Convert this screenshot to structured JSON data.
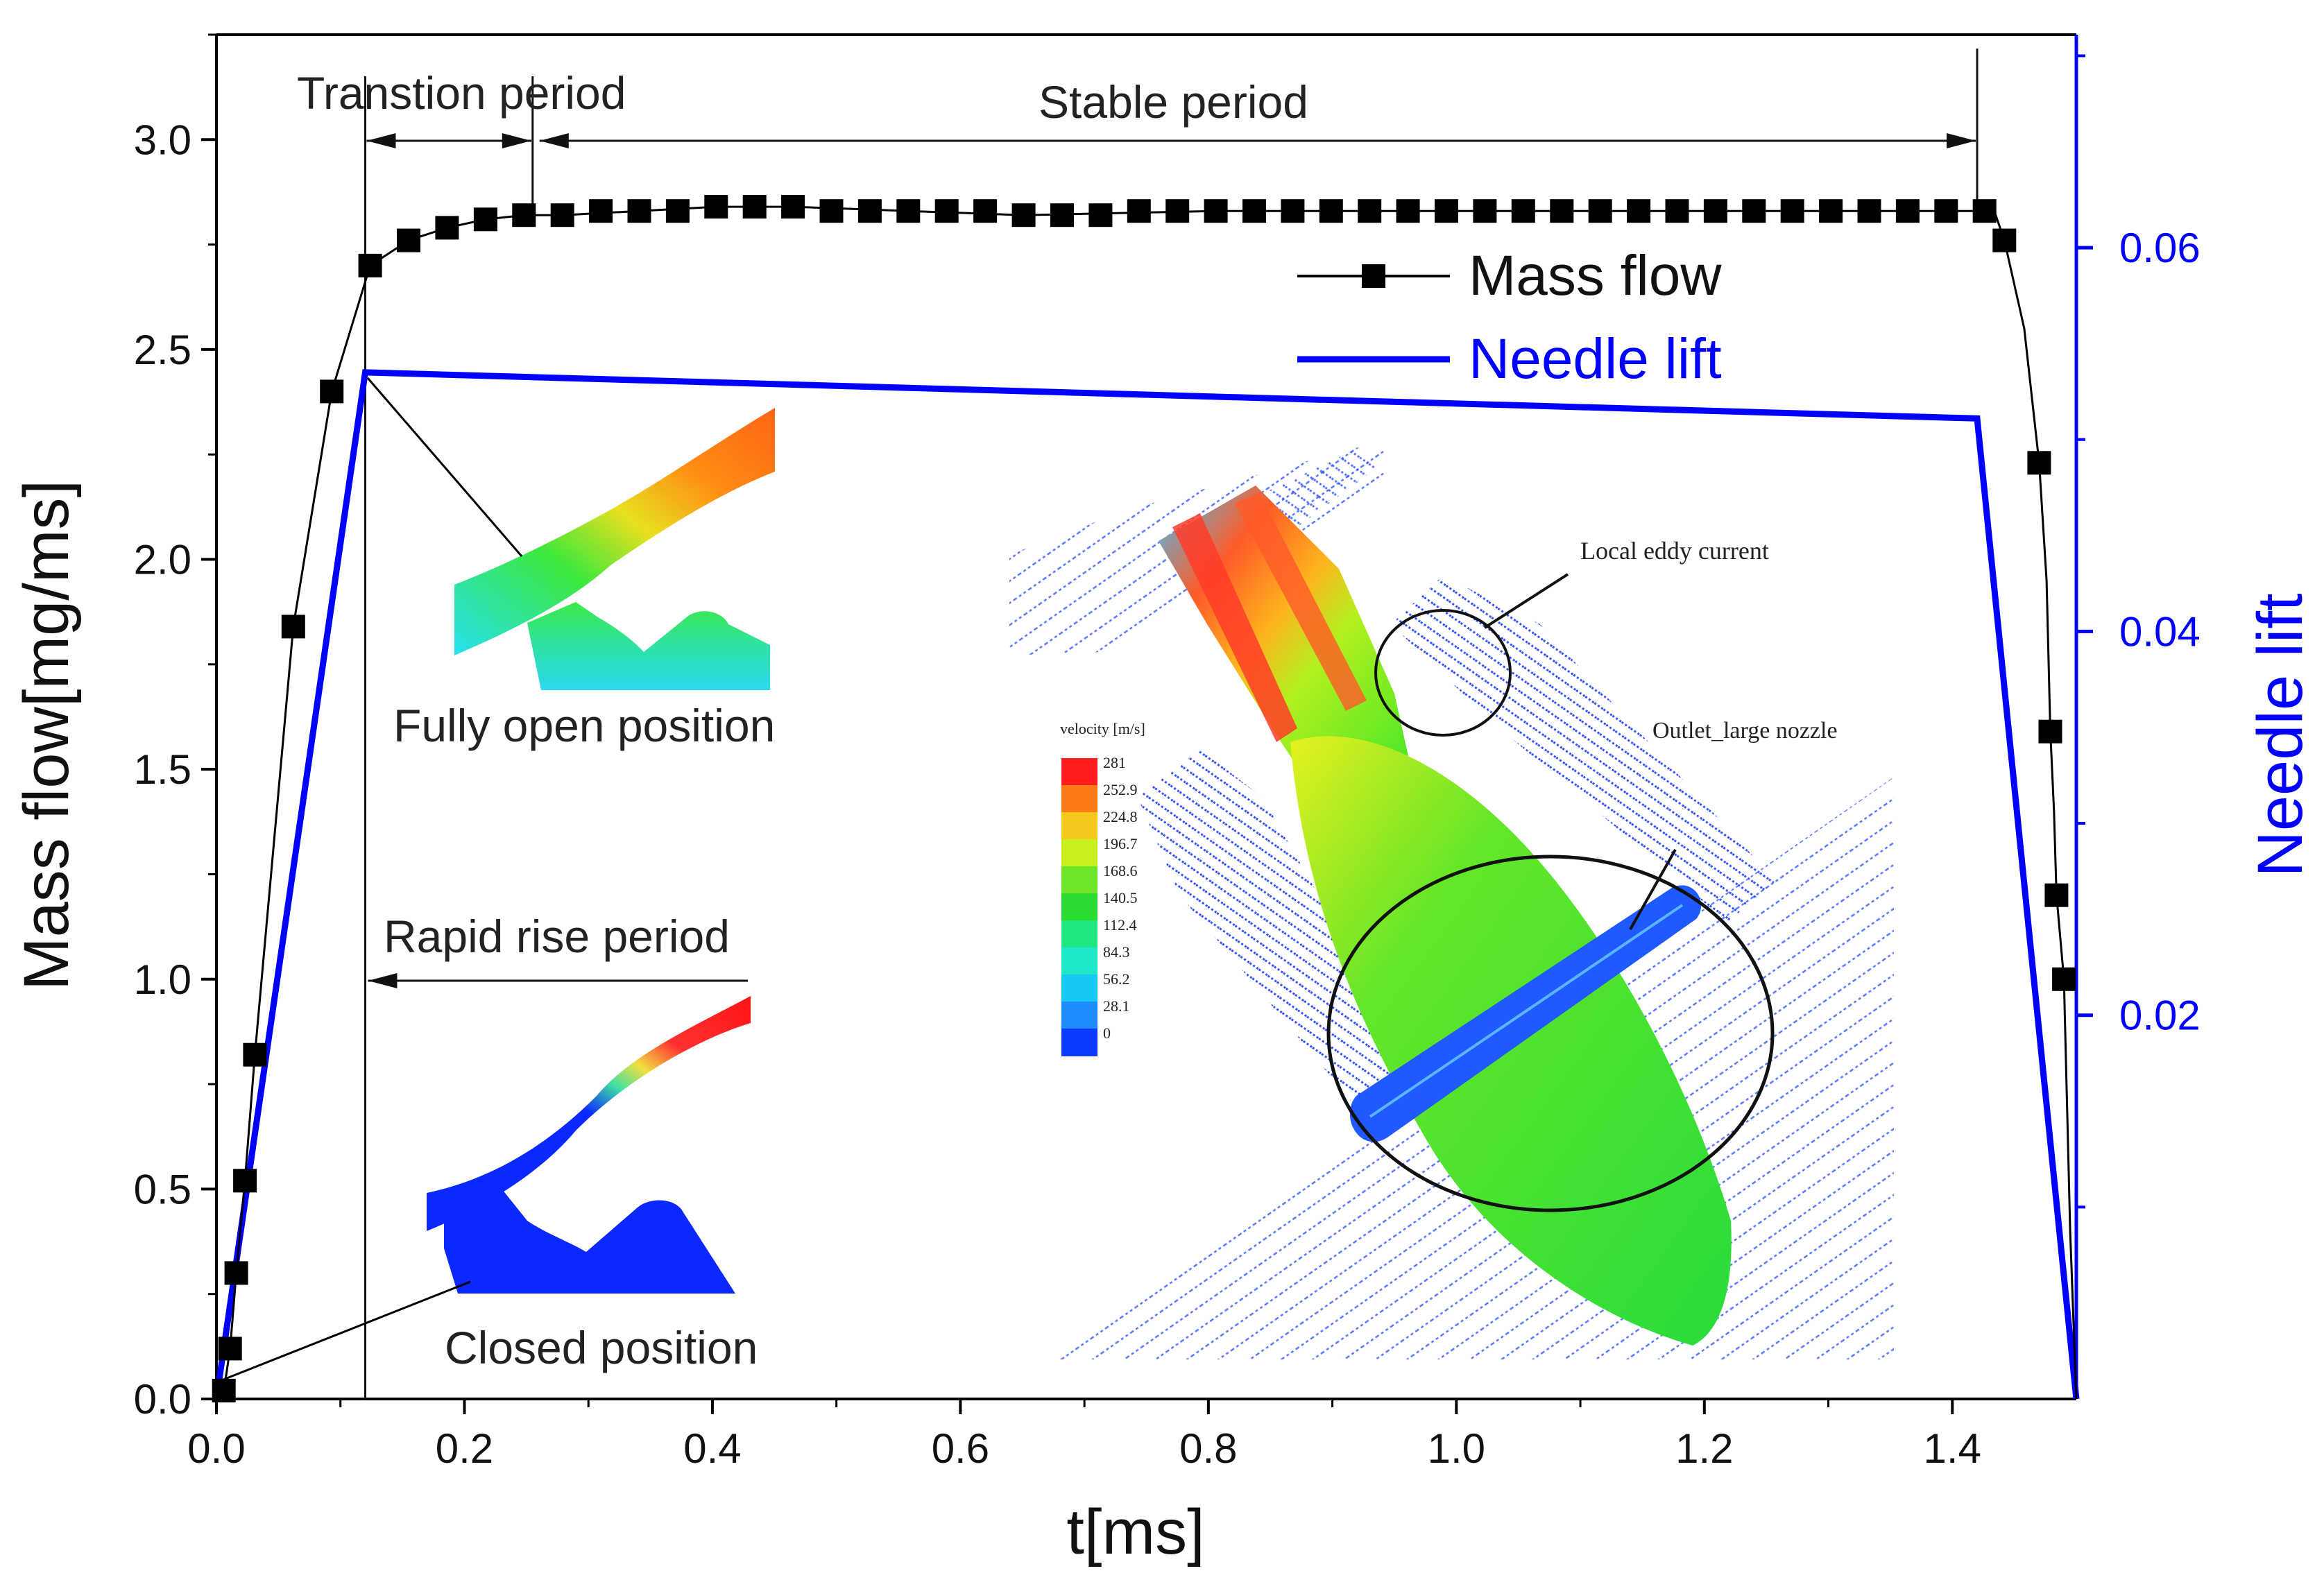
{
  "chart_data": {
    "type": "line",
    "xlabel": "t[ms]",
    "ylabel": "Mass flow[mg/ms]",
    "y2label": "Needle lift",
    "xlim": [
      0,
      1.5
    ],
    "ylim": [
      0,
      3.25
    ],
    "y2lim": [
      0.0,
      0.0711
    ],
    "x_ticks": [
      0.0,
      0.2,
      0.4,
      0.6,
      0.8,
      1.0,
      1.2,
      1.4
    ],
    "x_tick_labels": [
      "0.0",
      "0.2",
      "0.4",
      "0.6",
      "0.8",
      "1.0",
      "1.2",
      "1.4"
    ],
    "y_ticks": [
      0.0,
      0.5,
      1.0,
      1.5,
      2.0,
      2.5,
      3.0
    ],
    "y_tick_labels": [
      "0.0",
      "0.5",
      "1.0",
      "1.5",
      "2.0",
      "2.5",
      "3.0"
    ],
    "y2_ticks": [
      0.02,
      0.04,
      0.06
    ],
    "y2_tick_labels": [
      "0.02",
      "0.04",
      "0.06"
    ],
    "y2_minor_ticks": [
      0.01,
      0.03,
      0.05,
      0.07
    ],
    "colors": {
      "mass_flow": "#000000",
      "needle_lift": "#0000ff",
      "right_axis": "#0000ff"
    },
    "series": [
      {
        "name": "Mass flow",
        "axis": "left",
        "style": "line+square-markers",
        "x": [
          0.006,
          0.011,
          0.016,
          0.023,
          0.031,
          0.062,
          0.093,
          0.124,
          0.155,
          0.186,
          0.217,
          0.248,
          0.279,
          0.31,
          0.341,
          0.372,
          0.403,
          0.434,
          0.465,
          0.496,
          0.527,
          0.558,
          0.589,
          0.62,
          0.651,
          0.682,
          0.713,
          0.744,
          0.775,
          0.806,
          0.837,
          0.868,
          0.899,
          0.93,
          0.961,
          0.992,
          1.023,
          1.054,
          1.085,
          1.116,
          1.147,
          1.178,
          1.209,
          1.24,
          1.271,
          1.302,
          1.333,
          1.364,
          1.395,
          1.426,
          1.442,
          1.47,
          1.479,
          1.484,
          1.49
        ],
        "values": [
          0.02,
          0.12,
          0.3,
          0.52,
          0.82,
          1.84,
          2.4,
          2.7,
          2.76,
          2.79,
          2.81,
          2.82,
          2.82,
          2.83,
          2.83,
          2.83,
          2.84,
          2.84,
          2.84,
          2.83,
          2.83,
          2.83,
          2.83,
          2.83,
          2.82,
          2.82,
          2.82,
          2.83,
          2.83,
          2.83,
          2.83,
          2.83,
          2.83,
          2.83,
          2.83,
          2.83,
          2.83,
          2.83,
          2.83,
          2.83,
          2.83,
          2.83,
          2.83,
          2.83,
          2.83,
          2.83,
          2.83,
          2.83,
          2.83,
          2.83,
          2.76,
          2.23,
          1.59,
          1.2,
          1.0
        ],
        "curve_x": [
          0.0,
          0.006,
          0.011,
          0.016,
          0.023,
          0.031,
          0.062,
          0.093,
          0.124,
          0.155,
          0.186,
          0.217,
          0.248,
          0.279,
          0.341,
          0.403,
          0.465,
          0.558,
          0.651,
          0.806,
          0.992,
          1.178,
          1.302,
          1.426,
          1.435,
          1.442,
          1.458,
          1.47,
          1.476,
          1.479,
          1.482,
          1.484,
          1.487,
          1.49,
          1.495,
          1.5
        ],
        "curve_y": [
          0.0,
          0.02,
          0.12,
          0.3,
          0.52,
          0.82,
          1.84,
          2.4,
          2.7,
          2.76,
          2.79,
          2.81,
          2.82,
          2.82,
          2.83,
          2.84,
          2.84,
          2.83,
          2.82,
          2.83,
          2.83,
          2.83,
          2.83,
          2.83,
          2.82,
          2.76,
          2.55,
          2.23,
          1.95,
          1.59,
          1.4,
          1.2,
          1.1,
          1.0,
          0.4,
          0.0
        ]
      },
      {
        "name": "Needle lift",
        "axis": "right",
        "style": "line",
        "x": [
          0.0,
          0.12,
          1.42,
          1.5
        ],
        "values": [
          0.0,
          0.0535,
          0.0511,
          0.0
        ]
      }
    ],
    "legend": {
      "placement": "top-right",
      "entries": [
        "Mass flow",
        "Needle lift"
      ]
    },
    "annotations": {
      "transition_period": "Transtion period",
      "stable_period": "Stable period",
      "rapid_rise_period": "Rapid rise period",
      "fully_open_position": "Fully open position",
      "closed_position": "Closed position",
      "period_markers_x": [
        0.12,
        0.255,
        1.42
      ]
    },
    "inset": {
      "colorbar_title": "velocity [m/s]",
      "colorbar_values": [
        "281",
        "252.9",
        "224.8",
        "196.7",
        "168.6",
        "140.5",
        "112.4",
        "84.3",
        "56.2",
        "28.1",
        "0"
      ],
      "colorbar_colors": [
        "#ff1e1e",
        "#ff7a14",
        "#f5c81e",
        "#c8f01e",
        "#6ee628",
        "#2ddc32",
        "#1ee682",
        "#1ee6c8",
        "#14c8f0",
        "#1e8cff",
        "#0a3cff"
      ],
      "label_eddy": "Local eddy current",
      "label_outlet": "Outlet_large nozzle"
    }
  }
}
